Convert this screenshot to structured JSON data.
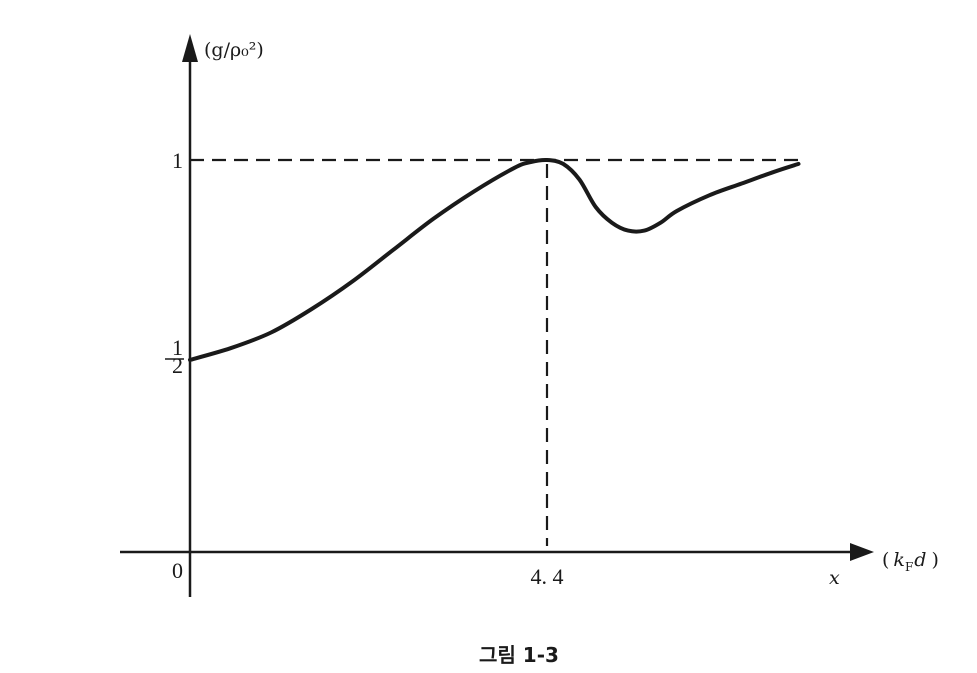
{
  "chart_data": {
    "type": "line",
    "ylabel": "(g/ρ₀²)",
    "x_axis_var": "x",
    "xlabel": "(k_F d)",
    "xlabel_parts": {
      "open": "(",
      "k": "k",
      "sub": "F",
      "d": "d",
      "close": ")"
    },
    "caption": "그림 1-3",
    "xlim": [
      0,
      7.6
    ],
    "ylim": [
      0,
      1.08
    ],
    "x_ticks": [
      {
        "value": 0,
        "label": "0"
      },
      {
        "value": 4.4,
        "label": "4. 4"
      }
    ],
    "y_ticks": [
      {
        "value": 1,
        "label": "1"
      },
      {
        "value": 0.5,
        "label": "½",
        "num": "1",
        "den": "2"
      }
    ],
    "reference_lines": [
      {
        "kind": "horizontal",
        "y": 1,
        "style": "dashed"
      },
      {
        "kind": "vertical",
        "x": 4.4,
        "style": "dashed"
      }
    ],
    "series": [
      {
        "x": [
          0,
          0.5,
          1.0,
          1.5,
          2.0,
          2.5,
          3.0,
          3.5,
          4.0,
          4.2,
          4.4,
          4.6,
          4.8,
          5.0,
          5.2,
          5.4,
          5.6,
          5.8,
          6.0,
          6.4,
          6.8,
          7.2,
          7.5
        ],
        "y": [
          0.49,
          0.52,
          0.56,
          0.62,
          0.69,
          0.77,
          0.85,
          0.92,
          0.98,
          0.995,
          1.0,
          0.99,
          0.95,
          0.88,
          0.84,
          0.82,
          0.82,
          0.84,
          0.87,
          0.91,
          0.94,
          0.97,
          0.99
        ]
      }
    ],
    "grid": false,
    "legend": "none"
  }
}
